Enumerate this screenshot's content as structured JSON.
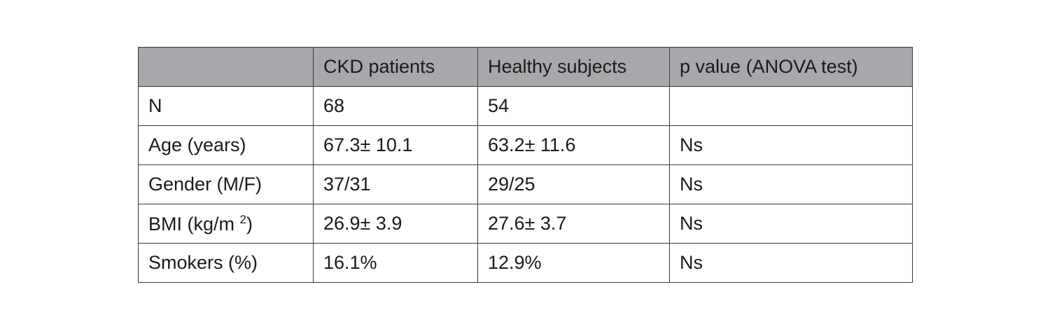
{
  "table": {
    "headers": [
      "",
      "CKD patients",
      "Healthy subjects",
      "p value (ANOVA test)"
    ],
    "rows": [
      [
        "N",
        "68",
        "54",
        ""
      ],
      [
        "Age (years)",
        "67.3± 10.1",
        "63.2± 11.6",
        "Ns"
      ],
      [
        "Gender (M/F)",
        "37/31",
        "29/25",
        "Ns"
      ],
      [
        "BMI (kg/m ",
        "26.9± 3.9",
        "27.6± 3.7",
        "Ns"
      ],
      [
        "Smokers (%)",
        "16.1%",
        "12.9%",
        "Ns"
      ]
    ],
    "bmi_superscript": "2",
    "bmi_suffix": ")"
  }
}
